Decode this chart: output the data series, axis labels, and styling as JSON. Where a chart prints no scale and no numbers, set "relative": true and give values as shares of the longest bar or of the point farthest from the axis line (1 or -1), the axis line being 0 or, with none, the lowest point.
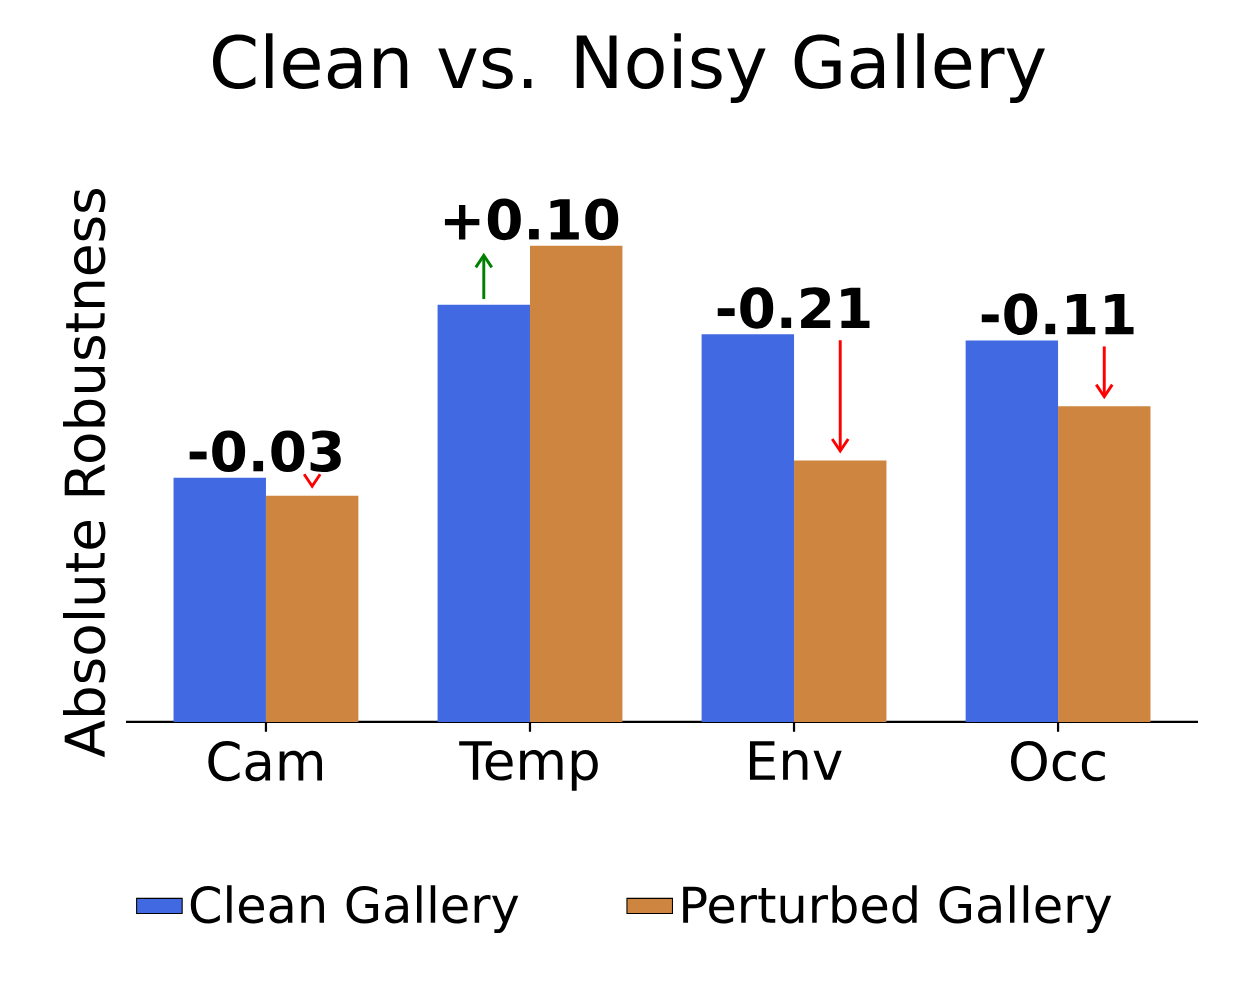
{
  "chart_data": {
    "type": "bar",
    "title": "Clean vs. Noisy Gallery",
    "ylabel": "Absolute Robustness",
    "categories": [
      "Cam",
      "Temp",
      "Env",
      "Occ"
    ],
    "series": [
      {
        "name": "Clean Gallery",
        "color": "#4169e1",
        "values": [
          0.513,
          0.876,
          0.814,
          0.801
        ]
      },
      {
        "name": "Perturbed Gallery",
        "color": "#cd853f",
        "values": [
          0.475,
          1.0,
          0.549,
          0.663
        ]
      }
    ],
    "relative": true,
    "annotations": [
      {
        "text": "-0.03",
        "x": "Cam",
        "y": 0.513
      },
      {
        "text": "+0.10",
        "x": "Temp",
        "y": 1.0
      },
      {
        "text": "-0.21",
        "x": "Env",
        "y": 0.814
      },
      {
        "text": "-0.11",
        "x": "Occ",
        "y": 0.801
      }
    ],
    "legend": "bottom"
  }
}
